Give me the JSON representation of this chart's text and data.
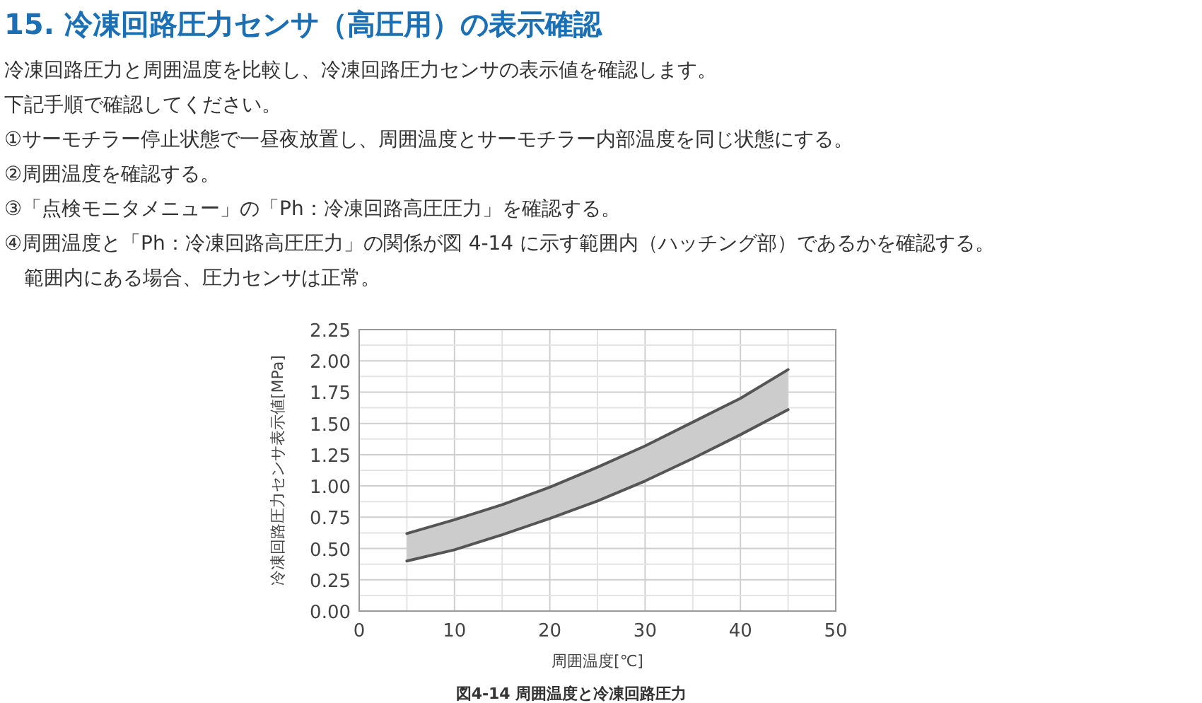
{
  "chart_data": {
    "type": "line",
    "title": "15. 冷凍回路圧力センサ（高圧用）の表示確認",
    "annotations": [
      "冷凍回路圧力と周囲温度を比較し、冷凍回路圧力センサの表示値を確認します。",
      "下記手順で確認してください。",
      "①サーモチラー停止状態で一昼夜放置し、周囲温度とサーモチラー内部温度を同じ状態にする。",
      "②周囲温度を確認する。",
      "③「点検モニタメニュー」の「Ph：冷凍回路高圧圧力」を確認する。",
      "④周囲温度と「Ph：冷凍回路高圧圧力」の関係が図 4-14 に示す範囲内（ハッチング部）であるかを確認する。",
      "　範囲内にある場合、圧力センサは正常。",
      "図4-14 周囲温度と冷凍回路圧力"
    ],
    "xlabel": "周囲温度[℃]",
    "ylabel": "冷凍回路圧力センサ表示値[MPa]",
    "x": [
      5,
      10,
      15,
      20,
      25,
      30,
      35,
      40,
      45
    ],
    "series": [
      {
        "color": "#555555",
        "values": [
          0.62,
          0.73,
          0.85,
          0.99,
          1.15,
          1.32,
          1.51,
          1.7,
          1.93
        ],
        "lower": [
          0.4,
          0.49,
          0.61,
          0.74,
          0.88,
          1.04,
          1.22,
          1.41,
          1.61
        ],
        "upper": [
          0.62,
          0.73,
          0.85,
          0.99,
          1.15,
          1.32,
          1.51,
          1.7,
          1.93
        ]
      },
      {
        "color": "#555555",
        "values": [
          0.4,
          0.49,
          0.61,
          0.74,
          0.88,
          1.04,
          1.22,
          1.41,
          1.61
        ]
      }
    ],
    "xlim": [
      0,
      50
    ],
    "xticks": [
      0,
      10,
      20,
      30,
      40,
      50
    ],
    "ylim": [
      0,
      2.25
    ],
    "yticks": [
      {
        "value": 0,
        "label": "0.00"
      },
      {
        "value": 0.25,
        "label": "0.25"
      },
      {
        "value": 0.5,
        "label": "0.50"
      },
      {
        "value": 0.75,
        "label": "0.75"
      },
      {
        "value": 1,
        "label": "1.00"
      },
      {
        "value": 1.25,
        "label": "1.25"
      },
      {
        "value": 1.5,
        "label": "1.50"
      },
      {
        "value": 1.75,
        "label": "1.75"
      },
      {
        "value": 2,
        "label": "2.00"
      },
      {
        "value": 2.25,
        "label": "2.25"
      }
    ],
    "grid": true,
    "marker": "none",
    "line_style": "solid"
  }
}
